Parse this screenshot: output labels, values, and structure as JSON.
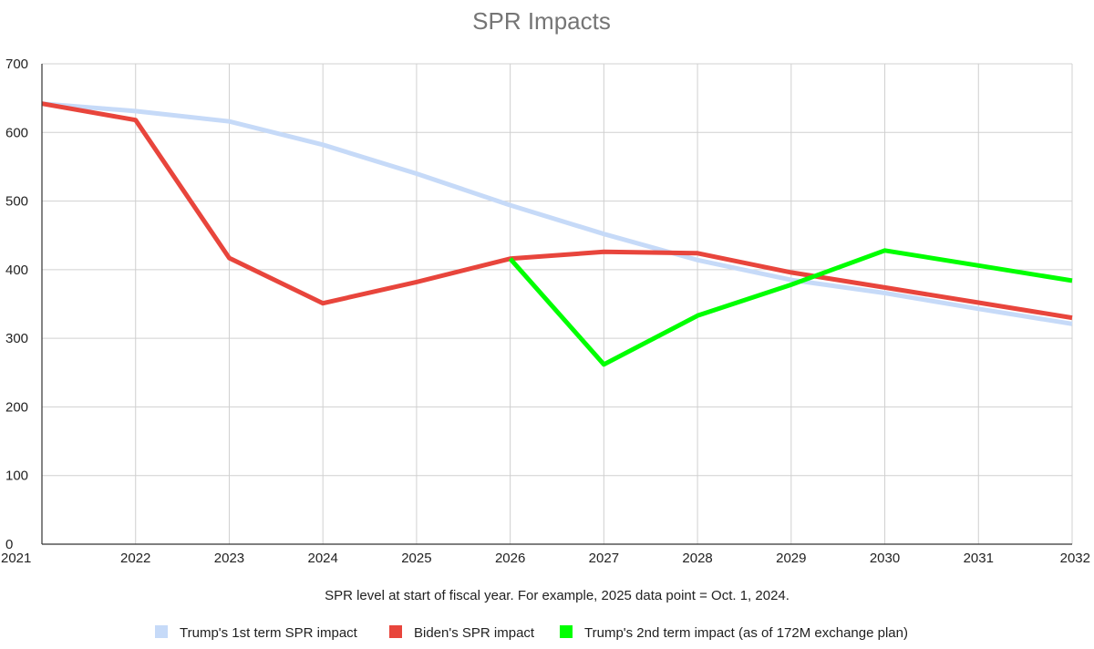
{
  "chart_data": {
    "type": "line",
    "title": "SPR Impacts",
    "xlabel": "SPR level at start of fiscal year. For example, 2025 data point = Oct. 1, 2024.",
    "ylabel": "",
    "x": [
      2021,
      2022,
      2023,
      2024,
      2025,
      2026,
      2027,
      2028,
      2029,
      2030,
      2031,
      2032
    ],
    "xlim": [
      2021,
      2032
    ],
    "ylim": [
      0,
      700
    ],
    "yticks": [
      0,
      100,
      200,
      300,
      400,
      500,
      600,
      700
    ],
    "grid": true,
    "legend_position": "bottom",
    "series": [
      {
        "name": "Trump's 1st term SPR impact",
        "color": "#c6daf8",
        "points": [
          [
            2021,
            642
          ],
          [
            2022,
            631
          ],
          [
            2023,
            616
          ],
          [
            2024,
            582
          ],
          [
            2025,
            540
          ],
          [
            2026,
            494
          ],
          [
            2027,
            452
          ],
          [
            2028,
            414
          ],
          [
            2029,
            385
          ],
          [
            2030,
            366
          ],
          [
            2031,
            343
          ],
          [
            2032,
            321
          ]
        ]
      },
      {
        "name": "Biden's SPR impact",
        "color": "#e8453c",
        "points": [
          [
            2021,
            642
          ],
          [
            2022,
            618
          ],
          [
            2023,
            417
          ],
          [
            2024,
            351
          ],
          [
            2025,
            382
          ],
          [
            2026,
            416
          ],
          [
            2027,
            426
          ],
          [
            2028,
            424
          ],
          [
            2029,
            396
          ],
          [
            2030,
            374
          ],
          [
            2031,
            352
          ],
          [
            2032,
            330
          ]
        ]
      },
      {
        "name": "Trump's 2nd term impact (as of 172M exchange plan)",
        "color": "#00ff00",
        "points": [
          [
            2026,
            416
          ],
          [
            2027,
            262
          ],
          [
            2028,
            333
          ],
          [
            2029,
            378
          ],
          [
            2030,
            428
          ],
          [
            2031,
            406
          ],
          [
            2032,
            384
          ]
        ]
      }
    ]
  }
}
